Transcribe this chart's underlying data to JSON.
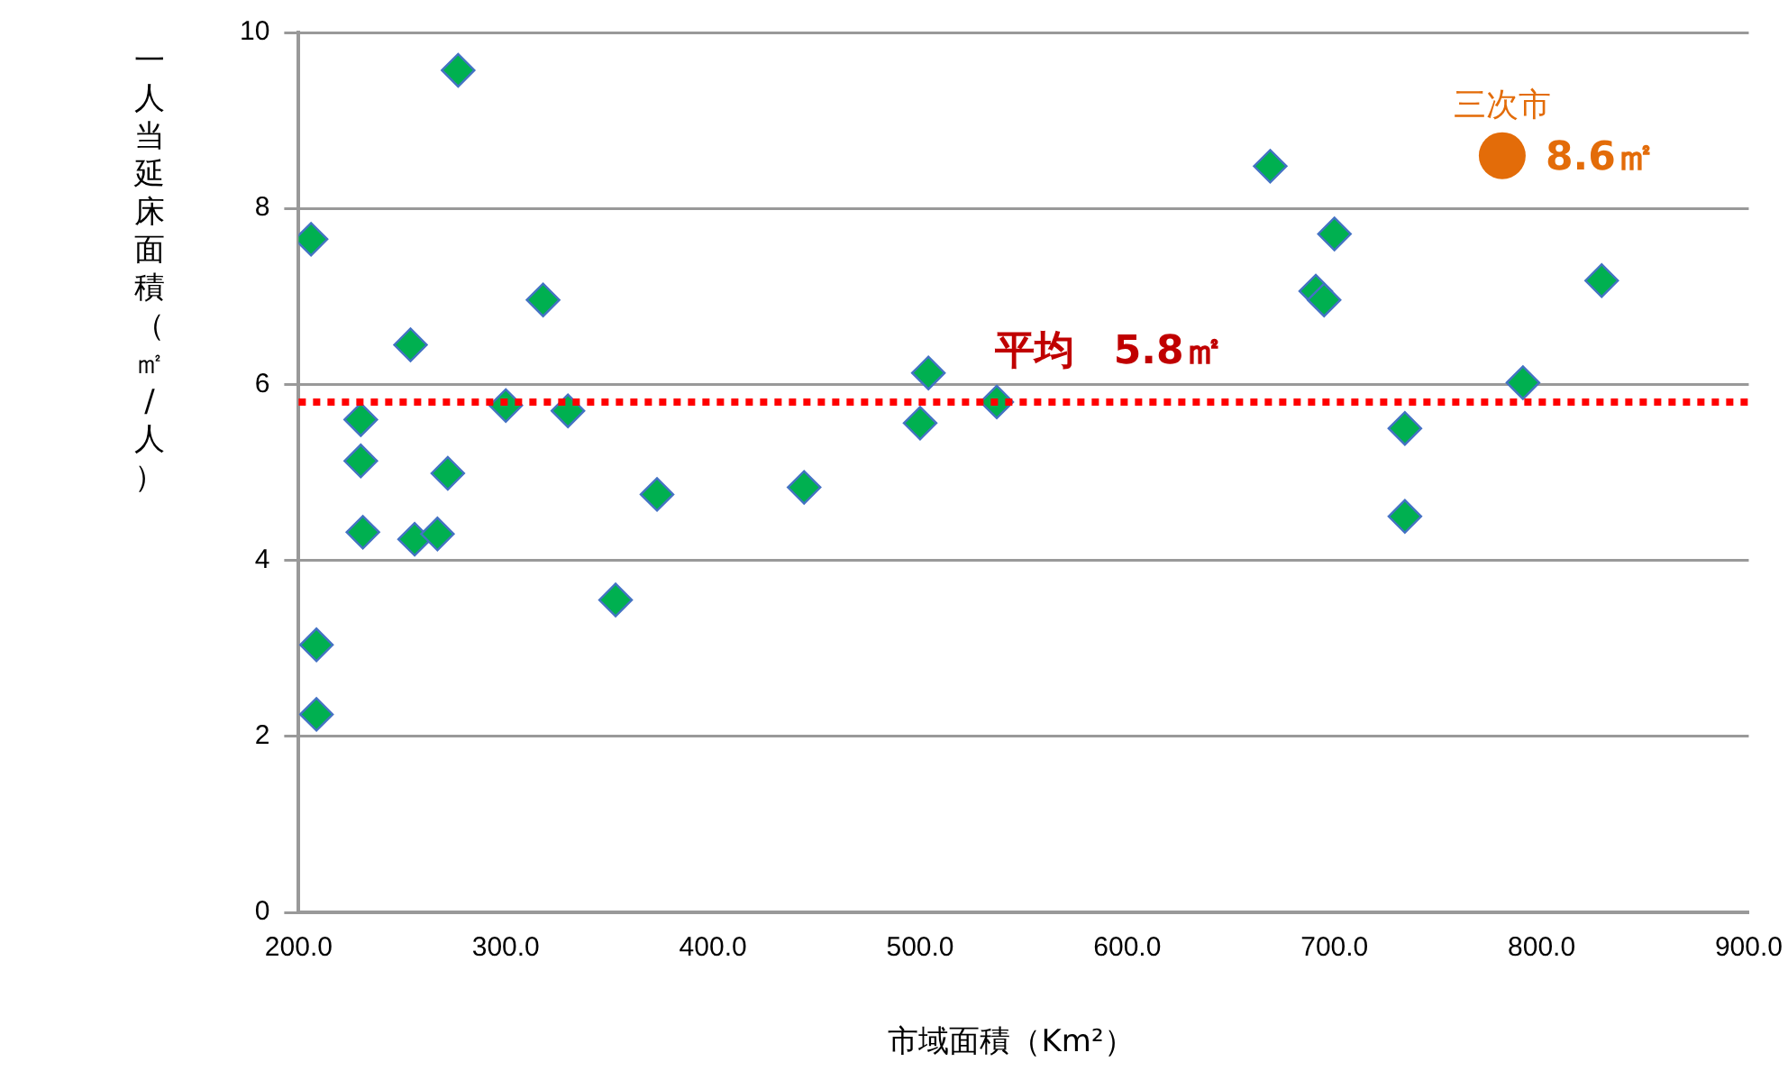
{
  "chart_data": {
    "type": "scatter",
    "xlabel": "市域面積（Km²）",
    "ylabel": "一人当延床面積（㎡/人）",
    "xlim": [
      200,
      900
    ],
    "xticks": [
      {
        "value": 200,
        "label": "200.0"
      },
      {
        "value": 300,
        "label": "300.0"
      },
      {
        "value": 400,
        "label": "400.0"
      },
      {
        "value": 500,
        "label": "500.0"
      },
      {
        "value": 600,
        "label": "600.0"
      },
      {
        "value": 700,
        "label": "700.0"
      },
      {
        "value": 800,
        "label": "800.0"
      },
      {
        "value": 900,
        "label": "900.0"
      }
    ],
    "ylim": [
      0,
      10
    ],
    "yticks": [
      0,
      2,
      4,
      6,
      8,
      10
    ],
    "grid": "y",
    "legend": false,
    "ref_lines": [
      {
        "axis": "y",
        "value": 5.8,
        "label": "平均　5.8㎡",
        "color": "#ff0000",
        "line_style": "dotted"
      }
    ],
    "series": [
      {
        "color": "#00b050",
        "marker": "diamond",
        "x": [
          206,
          208.6,
          208.6,
          230,
          230,
          231,
          254,
          256,
          267,
          272,
          277,
          300,
          318,
          330,
          353,
          373,
          444,
          500,
          504,
          537,
          669,
          691,
          695,
          700,
          734,
          734,
          791,
          829
        ],
        "values": [
          7.65,
          3.04,
          2.25,
          5.6,
          5.13,
          4.32,
          6.45,
          4.24,
          4.3,
          4.99,
          9.57,
          5.76,
          6.96,
          5.7,
          3.55,
          4.75,
          4.83,
          5.56,
          6.13,
          5.8,
          8.48,
          7.06,
          6.96,
          7.71,
          5.5,
          4.5,
          6.02,
          7.18
        ]
      },
      {
        "name": "三次市",
        "color": "#e36c09",
        "marker": "circle",
        "x": [
          781
        ],
        "values": [
          8.6
        ],
        "value_labels": [
          "8.6㎡"
        ]
      }
    ]
  }
}
